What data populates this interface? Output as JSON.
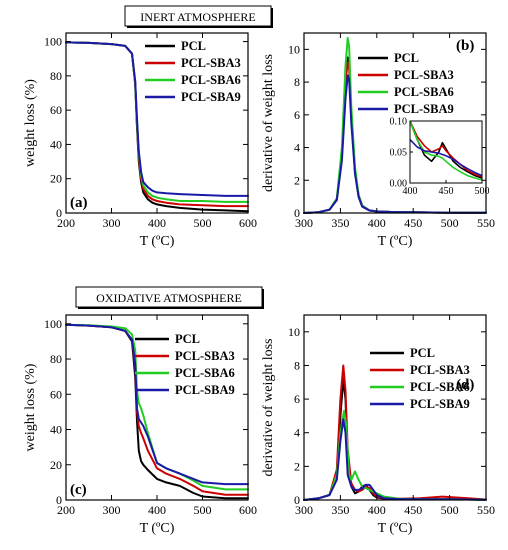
{
  "colors": {
    "PCL": "#000000",
    "PCL-SBA3": "#cc0000",
    "PCL-SBA6": "#22cc22",
    "PCL-SBA9": "#1a1aa6"
  },
  "chart_data": [
    {
      "id": "a",
      "panel_label": "(a)",
      "type": "line",
      "box_title": "INERT ATMOSPHERE",
      "xlabel": "T (ºC)",
      "ylabel": "weight loss (%)",
      "xlim": [
        200,
        600
      ],
      "ylim": [
        0,
        105
      ],
      "xticks": [
        200,
        300,
        400,
        500,
        600
      ],
      "yticks": [
        0,
        20,
        40,
        60,
        80,
        100
      ],
      "legend": [
        "PCL",
        "PCL-SBA3",
        "PCL-SBA6",
        "PCL-SBA9"
      ],
      "series": [
        {
          "name": "PCL",
          "x": [
            200,
            250,
            300,
            330,
            345,
            352,
            356,
            360,
            365,
            370,
            380,
            390,
            400,
            420,
            450,
            500,
            550,
            600
          ],
          "y": [
            99.5,
            99.2,
            98.5,
            97.5,
            93,
            75,
            50,
            30,
            18,
            12,
            8,
            6,
            5,
            4,
            3,
            2,
            1.5,
            1
          ]
        },
        {
          "name": "PCL-SBA3",
          "x": [
            200,
            250,
            300,
            330,
            345,
            352,
            356,
            360,
            365,
            370,
            380,
            390,
            400,
            420,
            450,
            500,
            550,
            600
          ],
          "y": [
            99.5,
            99.2,
            98.5,
            97.5,
            93,
            76,
            52,
            32,
            20,
            14,
            10,
            8,
            7,
            6,
            5,
            4.5,
            4,
            4
          ]
        },
        {
          "name": "PCL-SBA6",
          "x": [
            200,
            250,
            300,
            330,
            345,
            352,
            356,
            360,
            365,
            370,
            380,
            390,
            400,
            420,
            450,
            500,
            550,
            600
          ],
          "y": [
            99.5,
            99.2,
            98.5,
            97.5,
            93,
            76,
            53,
            34,
            22,
            16,
            12,
            10,
            9,
            8,
            7,
            7,
            6.5,
            6.5
          ]
        },
        {
          "name": "PCL-SBA9",
          "x": [
            200,
            250,
            300,
            330,
            345,
            352,
            356,
            360,
            365,
            370,
            380,
            390,
            400,
            420,
            450,
            500,
            550,
            600
          ],
          "y": [
            99.5,
            99.2,
            98.5,
            97.5,
            93,
            77,
            55,
            36,
            24,
            18,
            15,
            13,
            12,
            11.5,
            11,
            10.5,
            10,
            10
          ]
        }
      ]
    },
    {
      "id": "b",
      "panel_label": "(b)",
      "type": "line",
      "xlabel": "T (ºC)",
      "ylabel": "derivative of weight loss",
      "xlim": [
        300,
        550
      ],
      "ylim": [
        0,
        11
      ],
      "xticks": [
        300,
        350,
        400,
        450,
        500,
        550
      ],
      "yticks": [
        0,
        2,
        4,
        6,
        8,
        10
      ],
      "legend": [
        "PCL",
        "PCL-SBA3",
        "PCL-SBA6",
        "PCL-SBA9"
      ],
      "series": [
        {
          "name": "PCL",
          "x": [
            300,
            320,
            335,
            345,
            352,
            357,
            360,
            362,
            365,
            370,
            375,
            380,
            390,
            400,
            420,
            450,
            500,
            550
          ],
          "y": [
            0,
            0.05,
            0.2,
            0.8,
            3.5,
            8,
            9.5,
            9.2,
            6,
            2.5,
            1,
            0.4,
            0.15,
            0.1,
            0.06,
            0.04,
            0.02,
            0.01
          ]
        },
        {
          "name": "PCL-SBA3",
          "x": [
            300,
            320,
            335,
            345,
            352,
            357,
            360,
            362,
            365,
            370,
            375,
            380,
            390,
            400,
            420,
            450,
            500,
            550
          ],
          "y": [
            0,
            0.05,
            0.2,
            0.8,
            3.5,
            8,
            9.2,
            9,
            6,
            2.6,
            1.1,
            0.45,
            0.15,
            0.1,
            0.06,
            0.04,
            0.02,
            0.01
          ]
        },
        {
          "name": "PCL-SBA6",
          "x": [
            300,
            320,
            335,
            345,
            352,
            357,
            360,
            362,
            365,
            370,
            375,
            380,
            390,
            400,
            420,
            450,
            500,
            550
          ],
          "y": [
            0,
            0.05,
            0.2,
            0.9,
            4,
            9,
            10.7,
            10.2,
            6.5,
            2.8,
            1.1,
            0.45,
            0.15,
            0.1,
            0.06,
            0.04,
            0.02,
            0.01
          ]
        },
        {
          "name": "PCL-SBA9",
          "x": [
            300,
            320,
            335,
            345,
            352,
            357,
            360,
            362,
            365,
            370,
            375,
            380,
            390,
            400,
            420,
            450,
            500,
            550
          ],
          "y": [
            0,
            0.05,
            0.2,
            0.8,
            3.2,
            7,
            8.4,
            8.2,
            5.5,
            2.4,
            1,
            0.4,
            0.15,
            0.1,
            0.06,
            0.04,
            0.02,
            0.01
          ]
        }
      ],
      "inset": {
        "xlim": [
          400,
          500
        ],
        "ylim": [
          0,
          0.1
        ],
        "xticks": [
          400,
          450,
          500
        ],
        "yticks": [
          0.0,
          0.05,
          0.1
        ],
        "series": [
          {
            "name": "PCL",
            "x": [
              400,
              410,
              420,
              430,
              440,
              445,
              450,
              460,
              470,
              480,
              490,
              500
            ],
            "y": [
              0.1,
              0.07,
              0.045,
              0.035,
              0.05,
              0.065,
              0.055,
              0.035,
              0.025,
              0.018,
              0.012,
              0.008
            ]
          },
          {
            "name": "PCL-SBA3",
            "x": [
              400,
              410,
              420,
              430,
              440,
              445,
              450,
              460,
              470,
              480,
              490,
              500
            ],
            "y": [
              0.1,
              0.075,
              0.06,
              0.05,
              0.055,
              0.06,
              0.052,
              0.04,
              0.03,
              0.02,
              0.014,
              0.01
            ]
          },
          {
            "name": "PCL-SBA6",
            "x": [
              400,
              410,
              420,
              430,
              440,
              445,
              450,
              460,
              470,
              480,
              490,
              500
            ],
            "y": [
              0.1,
              0.07,
              0.05,
              0.045,
              0.043,
              0.04,
              0.035,
              0.025,
              0.018,
              0.012,
              0.008,
              0.005
            ]
          },
          {
            "name": "PCL-SBA9",
            "x": [
              400,
              410,
              420,
              430,
              440,
              445,
              450,
              460,
              470,
              480,
              490,
              500
            ],
            "y": [
              0.07,
              0.058,
              0.052,
              0.05,
              0.048,
              0.046,
              0.044,
              0.038,
              0.03,
              0.023,
              0.017,
              0.012
            ]
          }
        ]
      }
    },
    {
      "id": "c",
      "panel_label": "(c)",
      "type": "line",
      "box_title": "OXIDATIVE ATMOSPHERE",
      "xlabel": "T (ºC)",
      "ylabel": "weight loss (%)",
      "xlim": [
        200,
        600
      ],
      "ylim": [
        0,
        105
      ],
      "xticks": [
        200,
        300,
        400,
        500,
        600
      ],
      "yticks": [
        0,
        20,
        40,
        60,
        80,
        100
      ],
      "legend": [
        "PCL",
        "PCL-SBA3",
        "PCL-SBA6",
        "PCL-SBA9"
      ],
      "series": [
        {
          "name": "PCL",
          "x": [
            200,
            250,
            300,
            330,
            345,
            352,
            356,
            360,
            365,
            370,
            380,
            400,
            420,
            450,
            480,
            500,
            550,
            600
          ],
          "y": [
            99.5,
            99,
            98,
            96,
            90,
            70,
            45,
            28,
            22,
            20,
            17,
            12,
            10,
            8,
            4,
            2,
            1,
            1
          ]
        },
        {
          "name": "PCL-SBA3",
          "x": [
            200,
            250,
            300,
            330,
            345,
            352,
            356,
            360,
            365,
            370,
            380,
            400,
            420,
            450,
            480,
            500,
            550,
            600
          ],
          "y": [
            99.5,
            99,
            98,
            96,
            91,
            75,
            50,
            42,
            38,
            35,
            28,
            18,
            15,
            12,
            8,
            5,
            3,
            3
          ]
        },
        {
          "name": "PCL-SBA6",
          "x": [
            200,
            250,
            300,
            330,
            345,
            352,
            356,
            360,
            365,
            370,
            380,
            400,
            420,
            450,
            480,
            500,
            550,
            600
          ],
          "y": [
            99.5,
            99.2,
            98.5,
            97.5,
            94,
            85,
            62,
            55,
            52,
            48,
            38,
            21,
            18,
            15,
            11,
            8,
            6,
            6
          ]
        },
        {
          "name": "PCL-SBA9",
          "x": [
            200,
            250,
            300,
            330,
            345,
            352,
            356,
            360,
            365,
            370,
            380,
            400,
            420,
            450,
            480,
            500,
            550,
            600
          ],
          "y": [
            99.5,
            99,
            98,
            96,
            91,
            77,
            52,
            46,
            44,
            42,
            36,
            21,
            18,
            15,
            12,
            10,
            9,
            9
          ]
        }
      ]
    },
    {
      "id": "d",
      "panel_label": "(d)",
      "type": "line",
      "xlabel": "T (ºC)",
      "ylabel": "derivative of weight loss",
      "xlim": [
        300,
        550
      ],
      "ylim": [
        0,
        11
      ],
      "xticks": [
        300,
        350,
        400,
        450,
        500,
        550
      ],
      "yticks": [
        0,
        2,
        4,
        6,
        8,
        10
      ],
      "legend": [
        "PCL",
        "PCL-SBA3",
        "PCL-SBA6",
        "PCL-SBA9"
      ],
      "series": [
        {
          "name": "PCL",
          "x": [
            300,
            320,
            335,
            345,
            350,
            354,
            357,
            360,
            365,
            370,
            375,
            380,
            385,
            390,
            395,
            400,
            410,
            430,
            460,
            500,
            550
          ],
          "y": [
            0,
            0.1,
            0.3,
            1.5,
            5,
            7.2,
            6,
            2.5,
            0.8,
            0.4,
            0.5,
            0.8,
            0.9,
            0.6,
            0.3,
            0.15,
            0.08,
            0.05,
            0.05,
            0.05,
            0.02
          ]
        },
        {
          "name": "PCL-SBA3",
          "x": [
            300,
            320,
            335,
            345,
            350,
            354,
            357,
            360,
            365,
            370,
            375,
            380,
            385,
            390,
            395,
            400,
            410,
            430,
            460,
            490,
            520,
            550
          ],
          "y": [
            0,
            0.1,
            0.3,
            1.8,
            6,
            8,
            6.5,
            3,
            1,
            0.6,
            0.5,
            0.6,
            0.8,
            0.7,
            0.4,
            0.2,
            0.1,
            0.08,
            0.1,
            0.2,
            0.12,
            0.03
          ]
        },
        {
          "name": "PCL-SBA6",
          "x": [
            300,
            320,
            335,
            345,
            350,
            355,
            358,
            362,
            365,
            370,
            375,
            380,
            385,
            390,
            395,
            400,
            410,
            430,
            460,
            500,
            550
          ],
          "y": [
            0,
            0.1,
            0.3,
            1.5,
            4,
            5.3,
            4.5,
            1.5,
            1.2,
            1.7,
            1.2,
            0.8,
            0.7,
            0.6,
            0.5,
            0.4,
            0.2,
            0.08,
            0.05,
            0.05,
            0.02
          ]
        },
        {
          "name": "PCL-SBA9",
          "x": [
            300,
            320,
            335,
            345,
            350,
            354,
            357,
            360,
            365,
            370,
            375,
            380,
            385,
            390,
            395,
            400,
            410,
            430,
            460,
            500,
            550
          ],
          "y": [
            0,
            0.1,
            0.3,
            1.2,
            3.5,
            4.8,
            4,
            1.5,
            0.8,
            0.6,
            0.6,
            0.7,
            0.9,
            0.9,
            0.6,
            0.3,
            0.1,
            0.06,
            0.05,
            0.05,
            0.02
          ]
        }
      ]
    }
  ]
}
